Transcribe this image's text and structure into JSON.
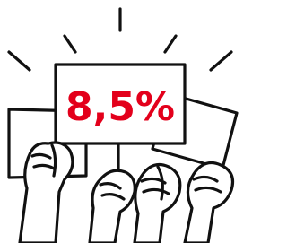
{
  "sign": {
    "text": "8,5%"
  }
}
